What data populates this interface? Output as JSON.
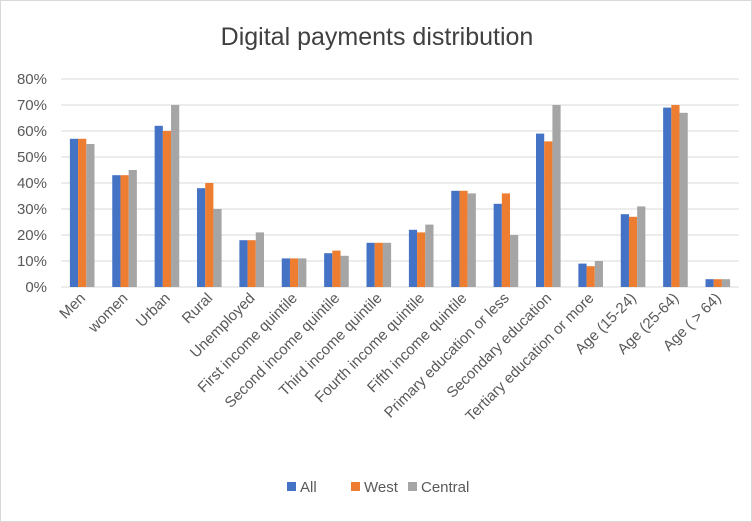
{
  "chart_data": {
    "type": "bar",
    "title": "Digital payments distribution",
    "xlabel": "",
    "ylabel": "",
    "ylim": [
      0,
      80
    ],
    "yticks": [
      "0%",
      "10%",
      "20%",
      "30%",
      "40%",
      "50%",
      "60%",
      "70%",
      "80%"
    ],
    "grid": true,
    "legend_position": "bottom",
    "categories": [
      "Men",
      "women",
      "Urban",
      "Rural",
      "Unemployed",
      "First income quintile",
      "Second income quintile",
      "Third income quintile",
      "Fourth income quintile",
      "Fifth income quintile",
      "Primary education or less",
      "Secondary education",
      "Tertiary education or more",
      "Age (15-24)",
      "Age (25-64)",
      "Age ( > 64)"
    ],
    "series": [
      {
        "name": "All",
        "color": "#4472c4",
        "values": [
          57,
          43,
          62,
          38,
          18,
          11,
          13,
          17,
          22,
          37,
          32,
          59,
          9,
          28,
          69,
          3
        ]
      },
      {
        "name": "West",
        "color": "#ed7d31",
        "values": [
          57,
          43,
          60,
          40,
          18,
          11,
          14,
          17,
          21,
          37,
          36,
          56,
          8,
          27,
          70,
          3
        ]
      },
      {
        "name": "Central",
        "color": "#a5a5a5",
        "values": [
          55,
          45,
          70,
          30,
          21,
          11,
          12,
          17,
          24,
          36,
          20,
          70,
          10,
          31,
          67,
          3
        ]
      }
    ]
  }
}
